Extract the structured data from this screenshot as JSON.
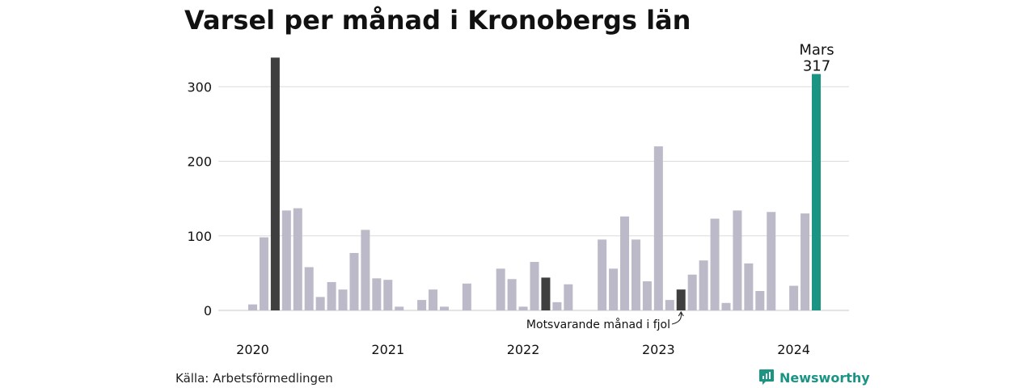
{
  "title": "Varsel per månad i Kronobergs län",
  "source": "Källa: Arbetsförmedlingen",
  "brand": {
    "name": "Newsworthy",
    "icon": "chart-speech-bubble-icon",
    "color": "#1a9483"
  },
  "chart_data": {
    "type": "bar",
    "title": "Varsel per månad i Kronobergs län",
    "xlabel": "",
    "ylabel": "",
    "ylim": [
      0,
      345
    ],
    "y_ticks": [
      "0",
      "100",
      "200",
      "300"
    ],
    "x_tick_labels": [
      {
        "label": "2020",
        "month": "2020-01"
      },
      {
        "label": "2021",
        "month": "2021-01"
      },
      {
        "label": "2022",
        "month": "2022-01"
      },
      {
        "label": "2023",
        "month": "2023-01"
      },
      {
        "label": "2024",
        "month": "2024-01"
      }
    ],
    "grid": true,
    "colors": {
      "default": "#bcbac8",
      "comparison": "#3f3f3f",
      "current": "#1a9483",
      "grid": "#dcdcdc"
    },
    "months": [
      "2020-01",
      "2020-02",
      "2020-03",
      "2020-04",
      "2020-05",
      "2020-06",
      "2020-07",
      "2020-08",
      "2020-09",
      "2020-10",
      "2020-11",
      "2020-12",
      "2021-01",
      "2021-02",
      "2021-03",
      "2021-04",
      "2021-05",
      "2021-06",
      "2021-07",
      "2021-08",
      "2021-09",
      "2021-10",
      "2021-11",
      "2021-12",
      "2022-01",
      "2022-02",
      "2022-03",
      "2022-04",
      "2022-05",
      "2022-06",
      "2022-07",
      "2022-08",
      "2022-09",
      "2022-10",
      "2022-11",
      "2022-12",
      "2023-01",
      "2023-02",
      "2023-03",
      "2023-04",
      "2023-05",
      "2023-06",
      "2023-07",
      "2023-08",
      "2023-09",
      "2023-10",
      "2023-11",
      "2023-12",
      "2024-01",
      "2024-02",
      "2024-03"
    ],
    "values": [
      8,
      98,
      339,
      134,
      137,
      58,
      18,
      38,
      28,
      77,
      108,
      43,
      41,
      5,
      0,
      14,
      28,
      5,
      0,
      36,
      0,
      0,
      56,
      42,
      5,
      65,
      44,
      11,
      35,
      0,
      0,
      95,
      56,
      126,
      95,
      39,
      220,
      14,
      28,
      48,
      67,
      123,
      10,
      134,
      63,
      26,
      132,
      0,
      33,
      130,
      317
    ],
    "highlights": [
      {
        "month": "2020-03",
        "role": "comparison"
      },
      {
        "month": "2022-03",
        "role": "comparison"
      },
      {
        "month": "2023-03",
        "role": "comparison"
      },
      {
        "month": "2024-03",
        "role": "current"
      }
    ],
    "annotations": [
      {
        "month": "2024-03",
        "label": "Mars",
        "value_label": "317"
      },
      {
        "month": "2023-03",
        "label": "Motsvarande månad i fjol"
      }
    ]
  }
}
